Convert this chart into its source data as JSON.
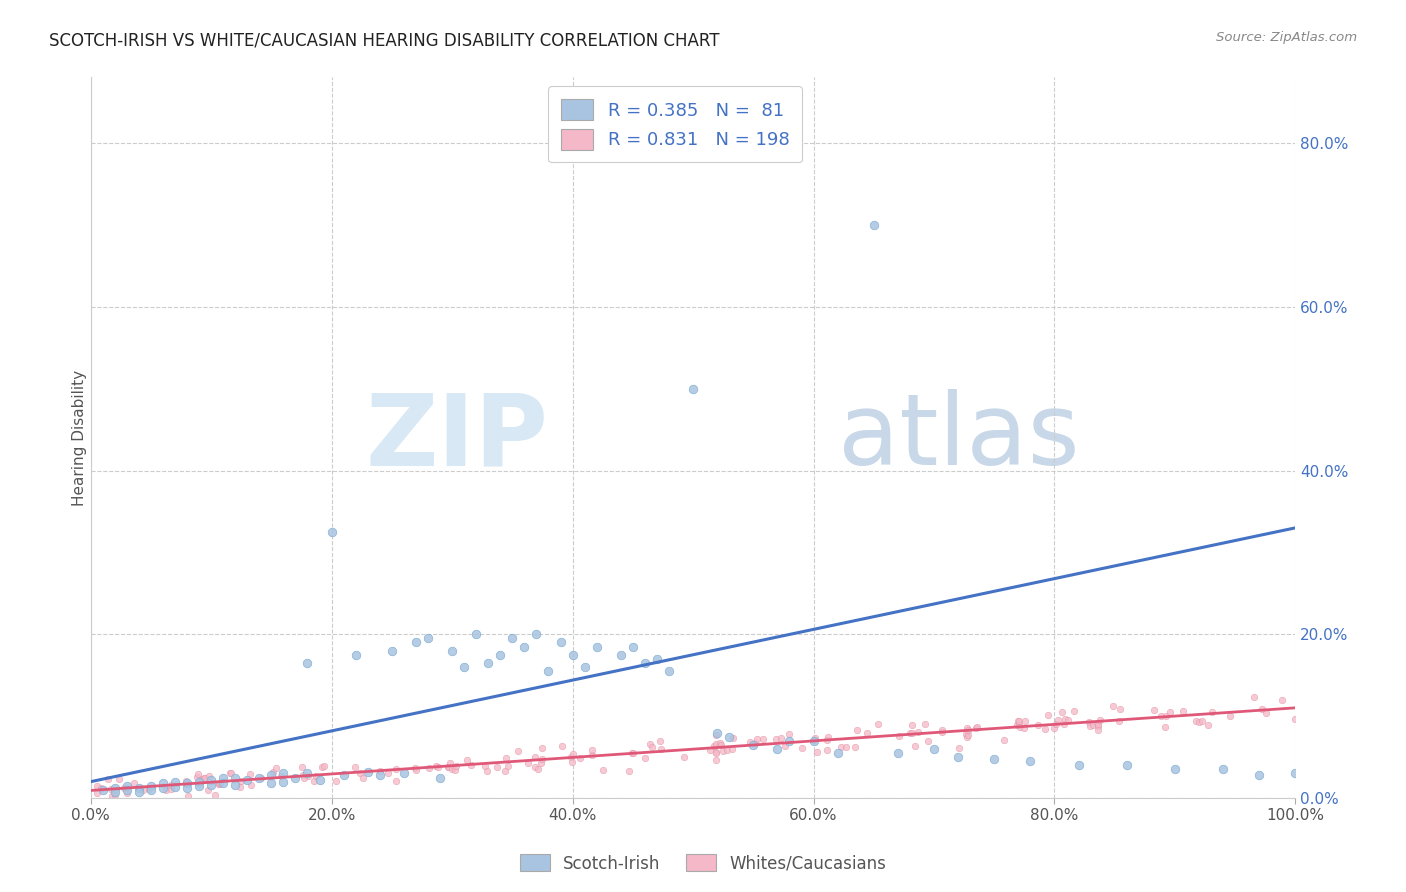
{
  "title": "SCOTCH-IRISH VS WHITE/CAUCASIAN HEARING DISABILITY CORRELATION CHART",
  "source": "Source: ZipAtlas.com",
  "ylabel": "Hearing Disability",
  "xlim": [
    0.0,
    1.0
  ],
  "ylim": [
    0.0,
    0.88
  ],
  "xticklabels": [
    "0.0%",
    "20.0%",
    "40.0%",
    "60.0%",
    "80.0%",
    "100.0%"
  ],
  "yticklabels_right": [
    "0.0%",
    "20.0%",
    "40.0%",
    "60.0%",
    "80.0%"
  ],
  "ytick_vals": [
    0.0,
    0.2,
    0.4,
    0.6,
    0.8
  ],
  "xtick_vals": [
    0.0,
    0.2,
    0.4,
    0.6,
    0.8,
    1.0
  ],
  "grid_color": "#cccccc",
  "background_color": "#ffffff",
  "scotch_irish_color": "#a8c4e0",
  "scotch_irish_edge_color": "#7aaad0",
  "scotch_irish_line_color": "#4472c4",
  "white_caucasian_color": "#f4b8c8",
  "white_caucasian_edge_color": "#e090a0",
  "white_caucasian_line_color": "#e05878",
  "scotch_irish_R": 0.385,
  "scotch_irish_N": 81,
  "white_caucasian_R": 0.831,
  "white_caucasian_N": 198,
  "legend_label_1": "Scotch-Irish",
  "legend_label_2": "Whites/Caucasians",
  "watermark_zip": "ZIP",
  "watermark_atlas": "atlas",
  "title_fontsize": 12,
  "label_color": "#4472c4",
  "tick_color": "#555555"
}
